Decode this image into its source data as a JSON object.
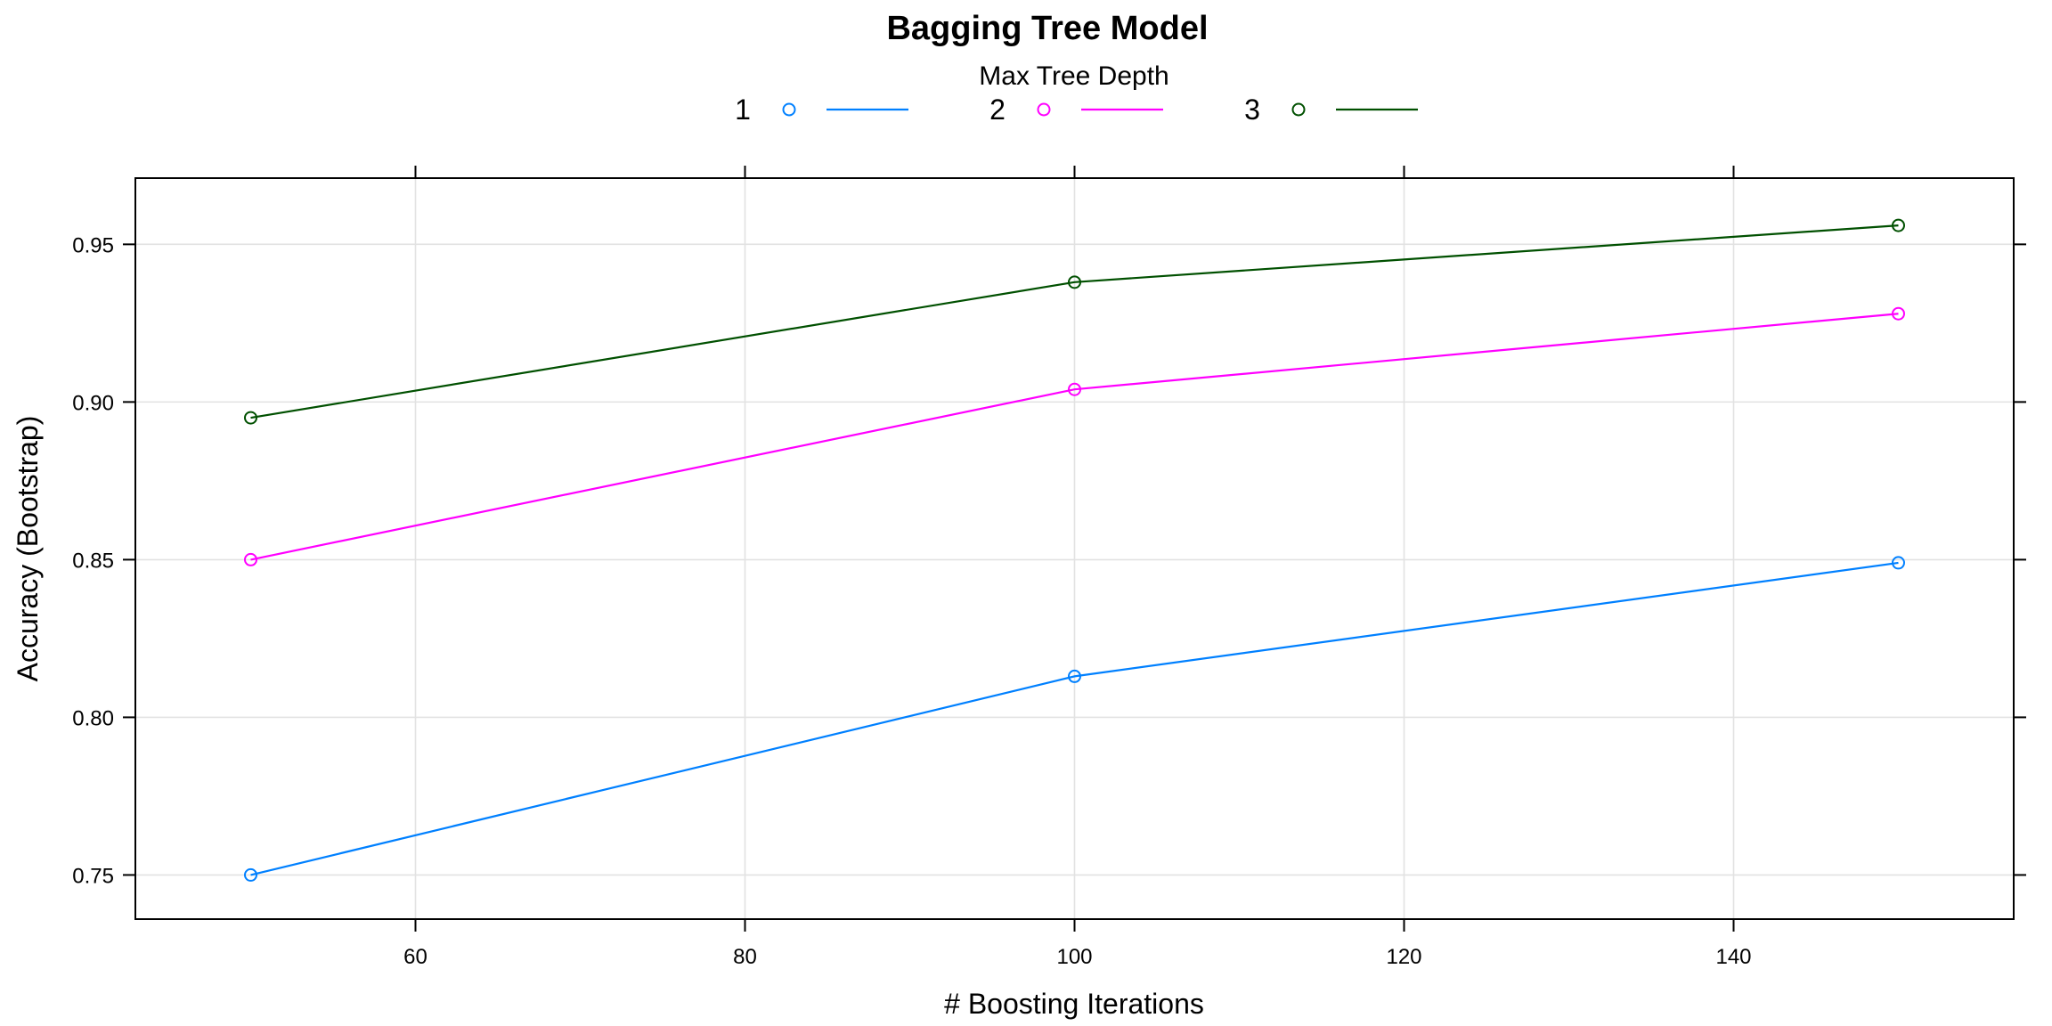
{
  "chart_data": {
    "type": "line",
    "title": "Bagging Tree Model",
    "xlabel": "# Boosting Iterations",
    "ylabel": "Accuracy (Bootstrap)",
    "legend": {
      "title": "Max Tree Depth",
      "placement": "top-center"
    },
    "x": [
      50,
      100,
      150
    ],
    "x_ticks": [
      60,
      80,
      100,
      120,
      140
    ],
    "y_ticks": [
      0.75,
      0.8,
      0.85,
      0.9,
      0.95
    ],
    "x_tick_labels": [
      "60",
      "80",
      "100",
      "120",
      "140"
    ],
    "y_tick_labels": [
      "0.75",
      "0.80",
      "0.85",
      "0.90",
      "0.95"
    ],
    "xlim": [
      43,
      157
    ],
    "ylim": [
      0.736,
      0.971
    ],
    "grid": true,
    "series": [
      {
        "name": "1",
        "color": "#0080ff",
        "values": [
          0.75,
          0.813,
          0.849
        ]
      },
      {
        "name": "2",
        "color": "#ff00ff",
        "values": [
          0.85,
          0.904,
          0.928
        ]
      },
      {
        "name": "3",
        "color": "#005000",
        "values": [
          0.895,
          0.938,
          0.956
        ]
      }
    ]
  }
}
